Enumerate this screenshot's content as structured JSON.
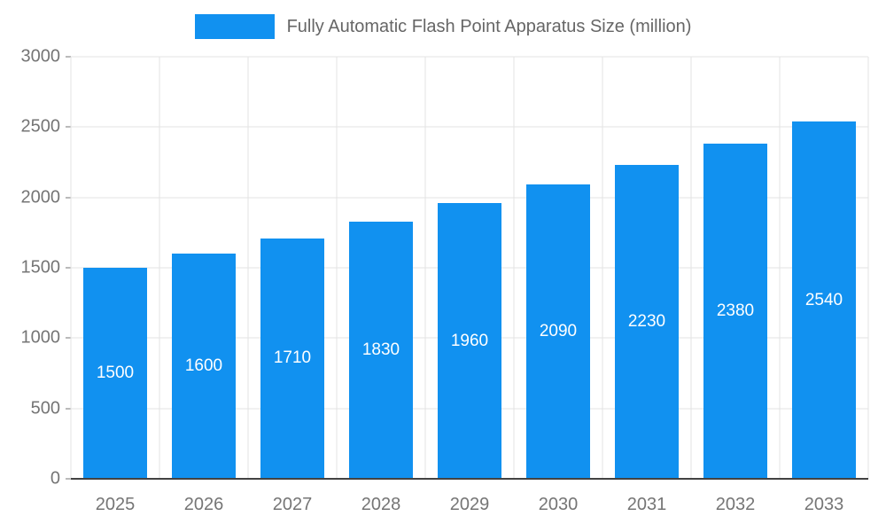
{
  "chart_data": {
    "type": "bar",
    "title": "Fully Automatic Flash Point Apparatus Size (million)",
    "categories": [
      "2025",
      "2026",
      "2027",
      "2028",
      "2029",
      "2030",
      "2031",
      "2032",
      "2033"
    ],
    "values": [
      1500,
      1600,
      1710,
      1830,
      1960,
      2090,
      2230,
      2380,
      2540
    ],
    "xlabel": "",
    "ylabel": "",
    "ylim": [
      0,
      3000
    ],
    "yticks": [
      0,
      500,
      1000,
      1500,
      2000,
      2500,
      3000
    ],
    "bar_color": "#1191f0",
    "value_label_color": "#ffffff",
    "grid": "on",
    "legend_position": "top-center"
  }
}
